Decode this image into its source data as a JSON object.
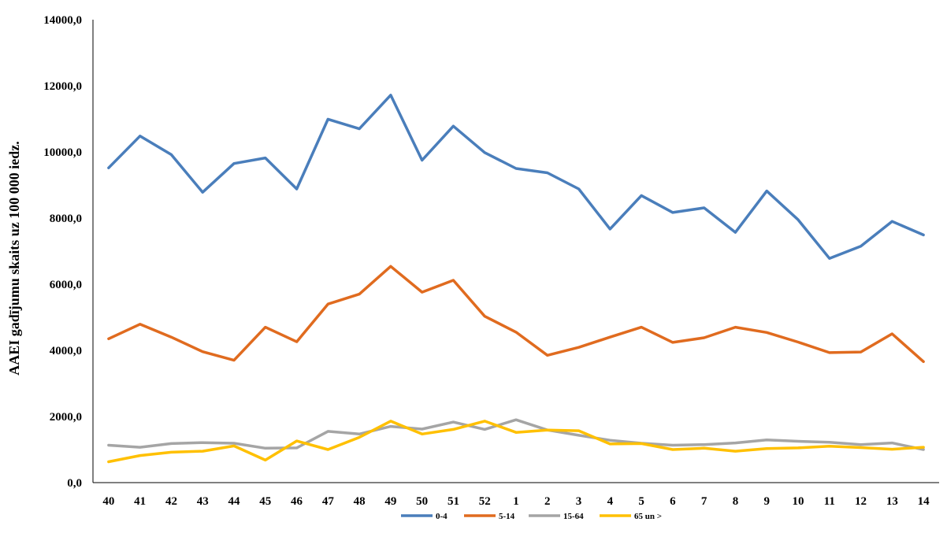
{
  "chart_data": {
    "type": "line",
    "title": "",
    "xlabel": "",
    "ylabel": "AAEI gadījumu skaits uz 100 000 iedz.",
    "ylim": [
      0,
      14000
    ],
    "y_ticks": [
      "0,0",
      "2000,0",
      "4000,0",
      "6000,0",
      "8000,0",
      "10000,0",
      "12000,0",
      "14000,0"
    ],
    "y_tick_values": [
      0,
      2000,
      4000,
      6000,
      8000,
      10000,
      12000,
      14000
    ],
    "categories": [
      "40",
      "41",
      "42",
      "43",
      "44",
      "45",
      "46",
      "47",
      "48",
      "49",
      "50",
      "51",
      "52",
      "1",
      "2",
      "3",
      "4",
      "5",
      "6",
      "7",
      "8",
      "9",
      "10",
      "11",
      "12",
      "13",
      "14"
    ],
    "grid": false,
    "legend_position": "bottom",
    "series": [
      {
        "name": "0-4",
        "color": "#4a7ebb",
        "values": [
          9520,
          10480,
          9920,
          8780,
          9650,
          9820,
          8880,
          10990,
          10700,
          11720,
          9750,
          10780,
          9980,
          9500,
          9370,
          8880,
          7670,
          8680,
          8170,
          8310,
          7570,
          8820,
          7950,
          6780,
          7150,
          7900,
          7490
        ]
      },
      {
        "name": "5-14",
        "color": "#e06b1f",
        "values": [
          4350,
          4790,
          4400,
          3960,
          3700,
          4700,
          4260,
          5400,
          5700,
          6540,
          5760,
          6120,
          5030,
          4550,
          3850,
          4090,
          4400,
          4700,
          4240,
          4380,
          4700,
          4540,
          4250,
          3930,
          3950,
          4500,
          3660
        ]
      },
      {
        "name": "15-64",
        "color": "#a5a5a5",
        "values": [
          1130,
          1070,
          1180,
          1210,
          1190,
          1040,
          1050,
          1550,
          1470,
          1700,
          1620,
          1830,
          1610,
          1900,
          1590,
          1430,
          1280,
          1190,
          1130,
          1150,
          1200,
          1290,
          1250,
          1220,
          1150,
          1200,
          1000
        ]
      },
      {
        "name": "65 un >",
        "color": "#ffc000",
        "values": [
          630,
          820,
          920,
          950,
          1110,
          680,
          1260,
          1000,
          1370,
          1860,
          1470,
          1610,
          1860,
          1520,
          1590,
          1570,
          1170,
          1180,
          1000,
          1040,
          950,
          1030,
          1050,
          1100,
          1060,
          1010,
          1070
        ]
      }
    ]
  }
}
